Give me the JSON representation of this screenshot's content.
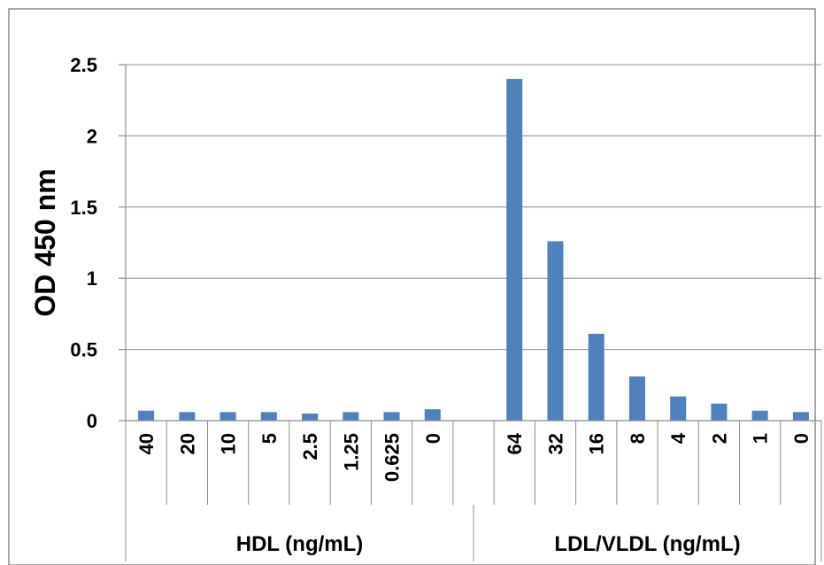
{
  "chart_data": {
    "type": "bar",
    "ylabel": "OD 450 nm",
    "ylim": [
      0,
      2.5
    ],
    "yticks": [
      "0",
      "0.5",
      "1",
      "1.5",
      "2",
      "2.5"
    ],
    "grid": true,
    "legend": "none",
    "bar_color": "#4f81bd",
    "groups": [
      {
        "label": "HDL (ng/mL)",
        "categories": [
          "40",
          "20",
          "10",
          "5",
          "2.5",
          "1.25",
          "0.625",
          "0"
        ],
        "values": [
          0.07,
          0.06,
          0.06,
          0.06,
          0.05,
          0.06,
          0.06,
          0.08
        ]
      },
      {
        "label": "LDL/VLDL (ng/mL)",
        "categories": [
          "64",
          "32",
          "16",
          "8",
          "4",
          "2",
          "1",
          "0"
        ],
        "values": [
          2.4,
          1.26,
          0.61,
          0.31,
          0.17,
          0.12,
          0.07,
          0.06
        ]
      }
    ]
  }
}
